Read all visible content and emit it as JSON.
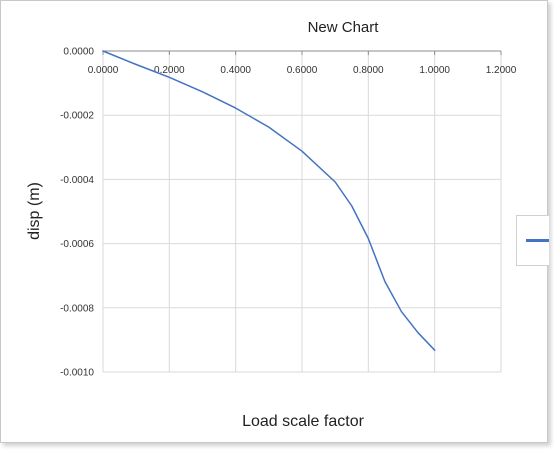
{
  "chart_data": {
    "type": "line",
    "title": "New Chart",
    "xlabel": "Load scale factor",
    "ylabel": "disp (m)",
    "xlim": [
      0,
      1.2
    ],
    "ylim": [
      -0.001,
      0
    ],
    "x_ticks": [
      "0.0000",
      "0.2000",
      "0.4000",
      "0.6000",
      "0.8000",
      "1.0000",
      "1.2000"
    ],
    "y_ticks": [
      "0.0000",
      "-0.0002",
      "-0.0004",
      "-0.0006",
      "-0.0008",
      "-0.0010"
    ],
    "grid": true,
    "legend": "right",
    "series": [
      {
        "color": "#4472c4",
        "x": [
          0,
          0.1,
          0.2,
          0.3,
          0.4,
          0.5,
          0.6,
          0.7,
          0.75,
          0.8,
          0.85,
          0.9,
          0.95,
          1.0
        ],
        "y": [
          0,
          -4.2e-05,
          -8.2e-05,
          -0.000127,
          -0.000178,
          -0.000237,
          -0.000312,
          -0.000408,
          -0.000483,
          -0.000584,
          -0.000718,
          -0.000812,
          -0.000878,
          -0.000932
        ]
      }
    ]
  }
}
